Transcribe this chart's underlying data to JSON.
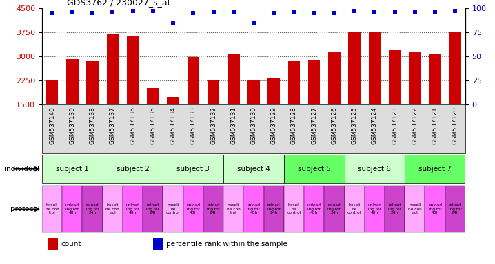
{
  "title": "GDS3762 / 230027_s_at",
  "samples": [
    "GSM537140",
    "GSM537139",
    "GSM537138",
    "GSM537137",
    "GSM537136",
    "GSM537135",
    "GSM537134",
    "GSM537133",
    "GSM537132",
    "GSM537131",
    "GSM537130",
    "GSM537129",
    "GSM537128",
    "GSM537127",
    "GSM537126",
    "GSM537125",
    "GSM537124",
    "GSM537123",
    "GSM537122",
    "GSM537121",
    "GSM537120"
  ],
  "counts": [
    2270,
    2900,
    2840,
    3670,
    3640,
    2000,
    1730,
    2960,
    2270,
    3060,
    2260,
    2330,
    2840,
    2880,
    3130,
    3760,
    3760,
    3200,
    3130,
    3060,
    3760
  ],
  "percentile_ranks": [
    95,
    96,
    95,
    96,
    97,
    97,
    85,
    95,
    96,
    96,
    85,
    95,
    96,
    95,
    95,
    97,
    96,
    96,
    96,
    96,
    97
  ],
  "ylim_left": [
    1500,
    4500
  ],
  "ylim_right": [
    0,
    100
  ],
  "yticks_left": [
    1500,
    2250,
    3000,
    3750,
    4500
  ],
  "yticks_right": [
    0,
    25,
    50,
    75,
    100
  ],
  "bar_color": "#cc0000",
  "dot_color": "#0000cc",
  "subjects": [
    {
      "label": "subject 1",
      "start": 0,
      "end": 3
    },
    {
      "label": "subject 2",
      "start": 3,
      "end": 6
    },
    {
      "label": "subject 3",
      "start": 6,
      "end": 9
    },
    {
      "label": "subject 4",
      "start": 9,
      "end": 12
    },
    {
      "label": "subject 5",
      "start": 12,
      "end": 15
    },
    {
      "label": "subject 6",
      "start": 15,
      "end": 18
    },
    {
      "label": "subject 7",
      "start": 18,
      "end": 21
    }
  ],
  "subject_colors": [
    "#ccffcc",
    "#ccffcc",
    "#ccffcc",
    "#ccffcc",
    "#66ff66",
    "#ccffcc",
    "#66ff66"
  ],
  "protocol_texts": [
    "baseli\nne con\ntrol",
    "unload\ning for\n48h",
    "reload\ning for\n24h",
    "baseli\nne con\ntrol",
    "unload\ning for\n48h",
    "reload\ning for\n24h",
    "baseli\nne\ncontrol",
    "unload\ning for\n48h",
    "reload\ning for\n24h",
    "baseli\nne con\ntrol",
    "unload\ning for\n48h",
    "reload\ning for\n24h",
    "baseli\nne\ncontrol",
    "unload\ning for\n48h",
    "reload\ning for\n24h",
    "baseli\nne\ncontrol",
    "unload\ning for\n48h",
    "reload\ning for\n24h",
    "baseli\nne con\ntrol",
    "unload\ning for\n48h",
    "reload\ning for\n24h"
  ],
  "protocol_colors": [
    "#ffaaff",
    "#ff66ff",
    "#cc44cc",
    "#ffaaff",
    "#ff66ff",
    "#cc44cc",
    "#ffaaff",
    "#ff66ff",
    "#cc44cc",
    "#ffaaff",
    "#ff66ff",
    "#cc44cc",
    "#ffaaff",
    "#ff66ff",
    "#cc44cc",
    "#ffaaff",
    "#ff66ff",
    "#cc44cc",
    "#ffaaff",
    "#ff66ff",
    "#cc44cc"
  ],
  "xlabel_bg_color": "#dddddd",
  "grid_color": "#555555",
  "bg_color": "#ffffff",
  "left_label_color": "#cc0000",
  "right_label_color": "#0000cc"
}
